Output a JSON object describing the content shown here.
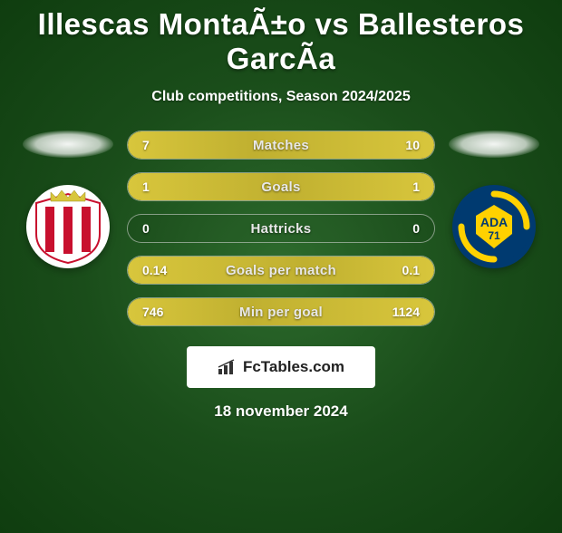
{
  "title": "Illescas MontaÃ±o vs Ballesteros GarcÃa",
  "subtitle": "Club competitions, Season 2024/2025",
  "date": "18 november 2024",
  "brand": "FcTables.com",
  "colors": {
    "bar_fill": "#d8c63c",
    "bar_border": "#d0d0d0",
    "background_center": "#2d6b2d",
    "background_edge": "#0f3d0f"
  },
  "left_club": {
    "name": "Sporting Gijón",
    "crest_bg": "#ffffff",
    "crest_stripe": "#c8102e",
    "crest_crown": "#d8c63c"
  },
  "right_club": {
    "name": "AD Alcorcón",
    "crest_bg": "#003a70",
    "crest_accent": "#ffd100",
    "crest_text": "ADA",
    "crest_year": "71"
  },
  "stats": [
    {
      "label": "Matches",
      "left_val": "7",
      "right_val": "10",
      "left_pct": 41,
      "right_pct": 59
    },
    {
      "label": "Goals",
      "left_val": "1",
      "right_val": "1",
      "left_pct": 50,
      "right_pct": 50
    },
    {
      "label": "Hattricks",
      "left_val": "0",
      "right_val": "0",
      "left_pct": 0,
      "right_pct": 0
    },
    {
      "label": "Goals per match",
      "left_val": "0.14",
      "right_val": "0.1",
      "left_pct": 58,
      "right_pct": 42
    },
    {
      "label": "Min per goal",
      "left_val": "746",
      "right_val": "1124",
      "left_pct": 40,
      "right_pct": 60
    }
  ]
}
